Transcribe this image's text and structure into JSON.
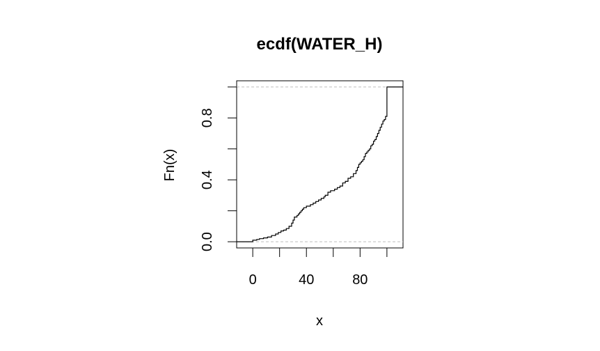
{
  "chart_data": {
    "type": "line",
    "subtype": "ecdf-step",
    "title": "ecdf(WATER_H)",
    "xlabel": "x",
    "ylabel": "Fn(x)",
    "xlim": [
      -12,
      112
    ],
    "ylim": [
      -0.04,
      1.04
    ],
    "x_ticks": [
      0,
      20,
      40,
      60,
      80,
      100
    ],
    "x_tick_labels": [
      "0",
      "",
      "40",
      "",
      "80",
      ""
    ],
    "y_ticks": [
      0,
      0.2,
      0.4,
      0.6,
      0.8,
      1.0
    ],
    "y_tick_labels": [
      "0.0",
      "",
      "0.4",
      "",
      "0.8",
      ""
    ],
    "reference_lines_y": [
      0,
      1
    ],
    "grid": false,
    "legend": "none",
    "series": [
      {
        "steps": [
          [
            -12,
            0.0
          ],
          [
            0,
            0.01
          ],
          [
            3,
            0.015
          ],
          [
            5,
            0.02
          ],
          [
            8,
            0.025
          ],
          [
            11,
            0.03
          ],
          [
            14,
            0.04
          ],
          [
            17,
            0.05
          ],
          [
            19,
            0.06
          ],
          [
            21,
            0.07
          ],
          [
            23,
            0.075
          ],
          [
            25,
            0.085
          ],
          [
            27,
            0.1
          ],
          [
            29,
            0.12
          ],
          [
            30,
            0.14
          ],
          [
            31,
            0.16
          ],
          [
            33,
            0.17
          ],
          [
            34,
            0.18
          ],
          [
            35,
            0.19
          ],
          [
            36,
            0.2
          ],
          [
            37,
            0.21
          ],
          [
            38,
            0.22
          ],
          [
            40,
            0.23
          ],
          [
            43,
            0.24
          ],
          [
            45,
            0.25
          ],
          [
            47,
            0.26
          ],
          [
            49,
            0.27
          ],
          [
            51,
            0.28
          ],
          [
            53,
            0.29
          ],
          [
            54,
            0.3
          ],
          [
            56,
            0.32
          ],
          [
            58,
            0.33
          ],
          [
            61,
            0.34
          ],
          [
            63,
            0.35
          ],
          [
            65,
            0.36
          ],
          [
            67,
            0.38
          ],
          [
            69,
            0.39
          ],
          [
            71,
            0.41
          ],
          [
            73,
            0.42
          ],
          [
            75,
            0.44
          ],
          [
            77,
            0.46
          ],
          [
            78,
            0.48
          ],
          [
            79,
            0.5
          ],
          [
            80,
            0.51
          ],
          [
            81,
            0.52
          ],
          [
            82,
            0.53
          ],
          [
            83,
            0.55
          ],
          [
            84,
            0.57
          ],
          [
            85,
            0.58
          ],
          [
            86,
            0.59
          ],
          [
            87,
            0.6
          ],
          [
            88,
            0.62
          ],
          [
            89,
            0.63
          ],
          [
            90,
            0.65
          ],
          [
            91,
            0.66
          ],
          [
            92,
            0.68
          ],
          [
            93,
            0.7
          ],
          [
            94,
            0.72
          ],
          [
            95,
            0.74
          ],
          [
            96,
            0.76
          ],
          [
            97,
            0.78
          ],
          [
            98,
            0.79
          ],
          [
            99,
            0.81
          ],
          [
            100,
            1.0
          ],
          [
            112,
            1.0
          ]
        ]
      }
    ],
    "colors": {
      "line": "#000000",
      "reference": "#bebebe",
      "axis": "#000000"
    }
  }
}
